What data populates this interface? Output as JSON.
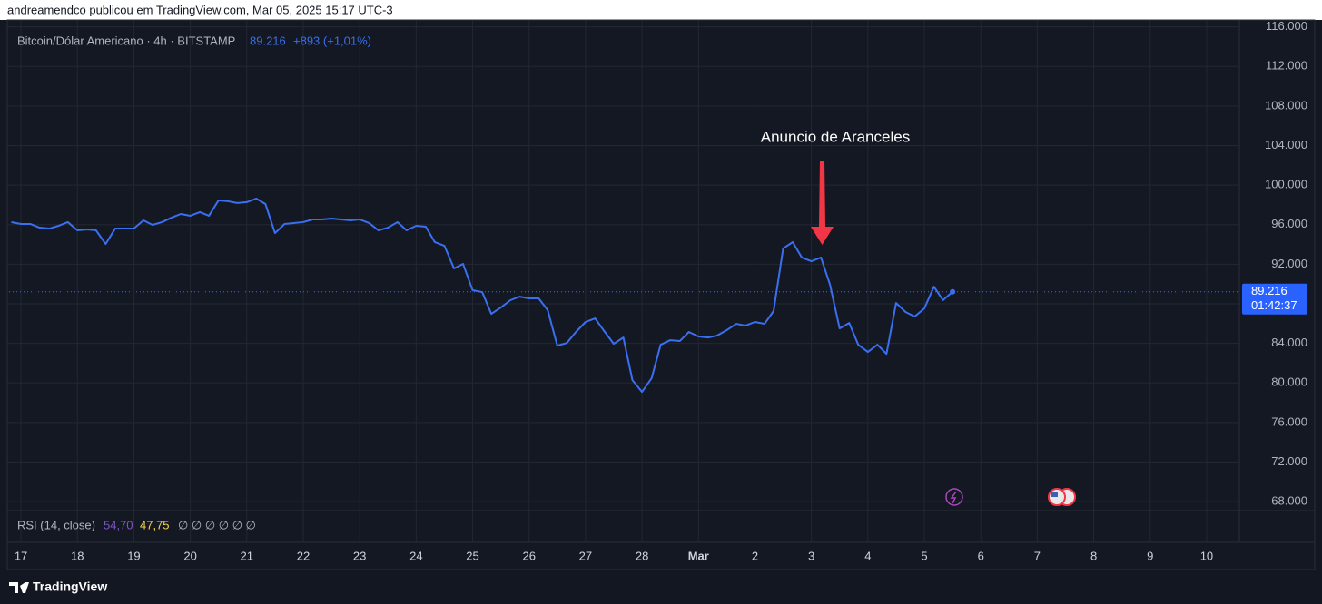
{
  "header": "andreamendco publicou em TradingView.com, Mar 05, 2025 15:17 UTC-3",
  "footer": "TradingView",
  "chart_data": {
    "type": "line",
    "series": [
      {
        "name": "Bitcoin/Dólar Americano · 4h · BITSTAMP",
        "color": "#3a6ff0",
        "values": [
          96256,
          96070,
          96070,
          95700,
          95610,
          95890,
          96260,
          95430,
          95520,
          95430,
          94050,
          95610,
          95610,
          95610,
          96440,
          95980,
          96260,
          96720,
          97080,
          96900,
          97270,
          96900,
          98460,
          98370,
          98190,
          98280,
          98640,
          98090,
          95150,
          96070,
          96160,
          96260,
          96530,
          96530,
          96620,
          96530,
          96440,
          96530,
          96160,
          95430,
          95700,
          96260,
          95430,
          95890,
          95800,
          94240,
          93870,
          91580,
          92040,
          89380,
          89190,
          86990,
          87630,
          88370,
          88730,
          88550,
          88550,
          87360,
          83780,
          84050,
          85160,
          86170,
          86530,
          85250,
          83960,
          84600,
          80290,
          79100,
          80480,
          83870,
          84330,
          84240,
          85160,
          84700,
          84600,
          84790,
          85340,
          85980,
          85800,
          86170,
          85980,
          87270,
          93600,
          94240,
          92680,
          92310,
          92680,
          89930,
          85520,
          86070,
          83870,
          83140,
          83870,
          82950,
          88090,
          87170,
          86720,
          87540,
          89740,
          88370,
          89216
        ]
      }
    ],
    "x": [
      16.83,
      17,
      17.17,
      17.33,
      17.5,
      17.67,
      17.83,
      18,
      18.17,
      18.33,
      18.5,
      18.67,
      18.83,
      19,
      19.17,
      19.33,
      19.5,
      19.67,
      19.83,
      20,
      20.17,
      20.33,
      20.5,
      20.67,
      20.83,
      21,
      21.17,
      21.33,
      21.5,
      21.67,
      21.83,
      22,
      22.17,
      22.33,
      22.5,
      22.67,
      22.83,
      23,
      23.17,
      23.33,
      23.5,
      23.67,
      23.83,
      24,
      24.17,
      24.33,
      24.5,
      24.67,
      24.83,
      25,
      25.17,
      25.33,
      25.5,
      25.67,
      25.83,
      26,
      26.17,
      26.33,
      26.5,
      26.67,
      26.83,
      27,
      27.17,
      27.33,
      27.5,
      27.67,
      27.83,
      28,
      28.17,
      28.33,
      28.5,
      28.67,
      28.83,
      29,
      29.17,
      29.33,
      29.5,
      29.67,
      29.83,
      30,
      30.17,
      30.33,
      30.5,
      30.67,
      30.83,
      31,
      31.17,
      31.33,
      31.5,
      31.67,
      31.83,
      32,
      32.17,
      32.33,
      32.5,
      32.67,
      32.83,
      33,
      33.17,
      33.33,
      33.5
    ],
    "last_price": {
      "value": 89216,
      "label": "89.216"
    },
    "countdown": "01:42:37",
    "change": "+893 (+1,01%)",
    "annotation": "Anuncio de Aranceles",
    "rsi": {
      "title": "RSI (14, close)",
      "values": [
        "54,70",
        "47,75"
      ],
      "empty": "∅ ∅ ∅ ∅ ∅ ∅"
    },
    "xlim": [
      16.79,
      38.58
    ],
    "ylim": [
      67100,
      116700
    ],
    "xticks": [
      17,
      18,
      19,
      20,
      21,
      22,
      23,
      24,
      25,
      26,
      27,
      28,
      {
        "value": 29,
        "label": "Mar"
      },
      {
        "value": 30,
        "label": "2"
      },
      {
        "value": 31,
        "label": "3"
      },
      {
        "value": 32,
        "label": "4"
      },
      {
        "value": 33,
        "label": "5"
      },
      {
        "value": 34,
        "label": "6"
      },
      {
        "value": 35,
        "label": "7"
      },
      {
        "value": 36,
        "label": "8"
      },
      {
        "value": 37,
        "label": "9"
      },
      {
        "value": 38,
        "label": "10"
      }
    ],
    "yticks": [
      {
        "value": 68000,
        "label": "68.000"
      },
      {
        "value": 72000,
        "label": "72.000"
      },
      {
        "value": 76000,
        "label": "76.000"
      },
      {
        "value": 80000,
        "label": "80.000"
      },
      {
        "value": 84000,
        "label": "84.000"
      },
      {
        "value": 88000,
        "label": "88.000"
      },
      {
        "value": 92000,
        "label": "92.000"
      },
      {
        "value": 96000,
        "label": "96.000"
      },
      {
        "value": 100000,
        "label": "100.000"
      },
      {
        "value": 104000,
        "label": "104.000"
      },
      {
        "value": 108000,
        "label": "108.000"
      },
      {
        "value": 112000,
        "label": "112.000"
      },
      {
        "value": 116000,
        "label": "116.000"
      }
    ],
    "grid": true
  }
}
